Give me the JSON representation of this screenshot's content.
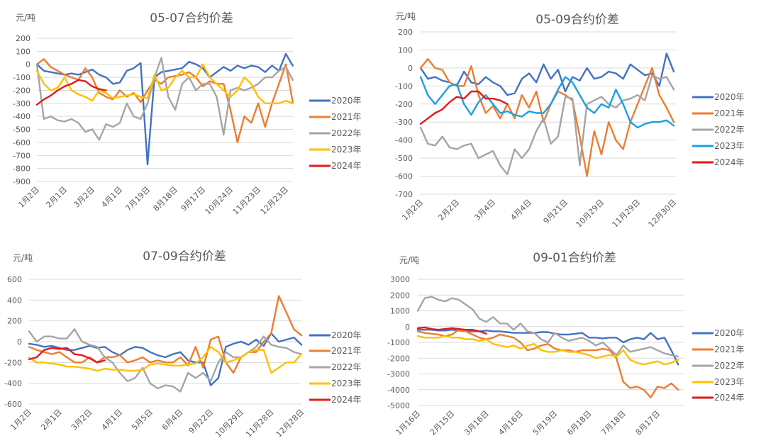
{
  "colors": {
    "2020年": "#4472C4",
    "2021年": "#ED7D31",
    "2022年": "#A5A5A5",
    "2023年": "#FFC000",
    "2024年": "#E31A1C",
    "2023年_alt": "#1AA0E6"
  },
  "chart_data": [
    {
      "type": "line",
      "title": "05-07合约价差",
      "ylabel": "元/吨",
      "xlabel": "",
      "ylim": [
        -900,
        200
      ],
      "ystep": 100,
      "grid": true,
      "legend": "right",
      "tick_labels": [
        "1月2日",
        "2月1日",
        "3月2日",
        "4月1日",
        "7月19日",
        "8月18日",
        "9月17日",
        "10月24日",
        "11月23日",
        "12月23日"
      ],
      "tick_every": 4,
      "series": [
        {
          "name": "2020年",
          "color": "#4472C4",
          "values": [
            0,
            -50,
            -60,
            -70,
            -80,
            -70,
            -80,
            -60,
            -40,
            -80,
            -100,
            -150,
            -140,
            -50,
            -30,
            10,
            -770,
            -100,
            -60,
            -50,
            -40,
            -30,
            20,
            0,
            -30,
            -100,
            -60,
            -20,
            -50,
            -10,
            -30,
            -10,
            -20,
            -60,
            -10,
            -50,
            80,
            -10
          ]
        },
        {
          "name": "2021年",
          "color": "#ED7D31",
          "values": [
            0,
            40,
            -20,
            -50,
            -80,
            -100,
            -120,
            -30,
            -100,
            -220,
            -250,
            -270,
            -200,
            -250,
            -220,
            -290,
            -200,
            -120,
            -150,
            -100,
            -90,
            -80,
            -60,
            -100,
            -170,
            -130,
            -150,
            -150,
            -350,
            -600,
            -400,
            -450,
            -300,
            -480,
            -300,
            -150,
            0,
            -290
          ]
        },
        {
          "name": "2022年",
          "color": "#A5A5A5",
          "values": [
            0,
            -420,
            -400,
            -430,
            -440,
            -420,
            -450,
            -520,
            -500,
            -580,
            -460,
            -480,
            -450,
            -300,
            -400,
            -420,
            -300,
            -100,
            50,
            -250,
            -350,
            -150,
            -100,
            -200,
            -150,
            -150,
            -250,
            -540,
            -200,
            -180,
            -200,
            -180,
            -150,
            -100,
            -100,
            -50,
            -20,
            -120
          ]
        },
        {
          "name": "2023年",
          "color": "#FFC000",
          "values": [
            -50,
            -150,
            -200,
            -180,
            -100,
            -200,
            -230,
            -250,
            -280,
            -200,
            -220,
            -260,
            -250,
            -240,
            -230,
            -250,
            -260,
            -80,
            -200,
            -180,
            -100,
            -50,
            -100,
            -100,
            0,
            -100,
            -150,
            -200,
            -250,
            -200,
            -100,
            -150,
            -250,
            -300,
            -300,
            -300,
            -280,
            -300
          ]
        },
        {
          "name": "2024年",
          "color": "#E31A1C",
          "values": [
            -310,
            -270,
            -240,
            -200,
            -170,
            -150,
            -120,
            -130,
            -170,
            -190,
            -200
          ]
        }
      ]
    },
    {
      "type": "line",
      "title": "05-09合约价差",
      "ylabel": "元/吨",
      "xlabel": "",
      "ylim": [
        -700,
        200
      ],
      "ystep": 100,
      "grid": true,
      "legend": "right",
      "tick_labels": [
        "1月2日",
        "2月2日",
        "3月4日",
        "4月4日",
        "9月21日",
        "10月29日",
        "11月29日",
        "12月30日"
      ],
      "tick_every": 5,
      "series": [
        {
          "name": "2020年",
          "color": "#4472C4",
          "values": [
            0,
            -60,
            -50,
            -70,
            -80,
            -100,
            -20,
            -80,
            -90,
            -50,
            -80,
            -100,
            -150,
            -140,
            -60,
            -30,
            -80,
            20,
            -60,
            -10,
            -130,
            -50,
            -70,
            0,
            -60,
            -50,
            -20,
            -30,
            -60,
            20,
            -10,
            -40,
            -30,
            -100,
            80,
            -20
          ]
        },
        {
          "name": "2021年",
          "color": "#ED7D31",
          "values": [
            0,
            50,
            0,
            -10,
            -80,
            -100,
            -100,
            10,
            -150,
            -250,
            -210,
            -280,
            -200,
            -280,
            -150,
            -220,
            -130,
            -300,
            -200,
            -130,
            -150,
            -180,
            -380,
            -600,
            -350,
            -480,
            -300,
            -400,
            -450,
            -300,
            -200,
            -100,
            0,
            -150,
            -220,
            -300
          ]
        },
        {
          "name": "2022年",
          "color": "#A5A5A5",
          "values": [
            -330,
            -420,
            -430,
            -380,
            -440,
            -450,
            -430,
            -420,
            -500,
            -480,
            -460,
            -540,
            -590,
            -450,
            -500,
            -450,
            -350,
            -280,
            -420,
            -380,
            -160,
            -170,
            -540,
            -200,
            -180,
            -160,
            -200,
            -220,
            -180,
            -170,
            -150,
            -180,
            -40,
            -60,
            -50,
            -120
          ]
        },
        {
          "name": "2023年",
          "color": "#1AA0E6",
          "values": [
            -50,
            -150,
            -200,
            -150,
            -100,
            -90,
            -200,
            -260,
            -190,
            -150,
            -200,
            -250,
            -240,
            -260,
            -270,
            -240,
            -250,
            -250,
            -200,
            -120,
            -50,
            -80,
            -150,
            -220,
            -250,
            -200,
            -220,
            -120,
            -200,
            -300,
            -330,
            -310,
            -300,
            -300,
            -290,
            -320
          ]
        },
        {
          "name": "2024年",
          "color": "#E31A1C",
          "values": [
            -310,
            -280,
            -250,
            -230,
            -190,
            -160,
            -170,
            -130,
            -130,
            -170,
            -170,
            -180,
            -200
          ]
        }
      ]
    },
    {
      "type": "line",
      "title": "07-09合约价差",
      "ylabel": "元/吨",
      "xlabel": "",
      "ylim": [
        -600,
        600
      ],
      "ystep": 200,
      "grid": true,
      "legend": "right",
      "tick_labels": [
        "1月2日",
        "2月1日",
        "3月2日",
        "4月1日",
        "5月5日",
        "6月4日",
        "9月22日",
        "10月29日",
        "11月28日",
        "12月28日"
      ],
      "tick_every": 4,
      "series": [
        {
          "name": "2020年",
          "color": "#4472C4",
          "values": [
            -20,
            -30,
            -50,
            -40,
            -60,
            -80,
            -80,
            -60,
            -40,
            -60,
            -50,
            -100,
            -130,
            -80,
            -50,
            -60,
            -100,
            -130,
            -150,
            -120,
            -100,
            -180,
            -200,
            -200,
            -420,
            -350,
            -50,
            -20,
            0,
            -30,
            20,
            -40,
            80,
            0,
            20,
            40,
            -30
          ]
        },
        {
          "name": "2021年",
          "color": "#ED7D31",
          "values": [
            -50,
            -80,
            -100,
            -120,
            -100,
            -150,
            -200,
            -200,
            -150,
            -200,
            -150,
            -150,
            -130,
            -200,
            -180,
            -150,
            -200,
            -180,
            -200,
            -200,
            -150,
            -230,
            -50,
            -250,
            20,
            50,
            -200,
            -300,
            -150,
            -100,
            -100,
            0,
            80,
            440,
            280,
            120,
            60
          ]
        },
        {
          "name": "2022年",
          "color": "#A5A5A5",
          "values": [
            100,
            0,
            50,
            50,
            30,
            30,
            120,
            0,
            -30,
            -50,
            -150,
            -200,
            -300,
            -380,
            -350,
            -250,
            -400,
            -450,
            -420,
            -430,
            -480,
            -300,
            -350,
            -300,
            -380,
            -200,
            -100,
            -150,
            -150,
            -100,
            -50,
            50,
            -30,
            -50,
            -60,
            -100,
            -120
          ]
        },
        {
          "name": "2023年",
          "color": "#FFC000",
          "values": [
            -150,
            -200,
            -200,
            -210,
            -220,
            -240,
            -240,
            -250,
            -260,
            -280,
            -260,
            -270,
            -270,
            -280,
            -280,
            -270,
            -220,
            -210,
            -220,
            -230,
            -230,
            -220,
            -210,
            -150,
            -50,
            -100,
            -200,
            -180,
            -150,
            -100,
            -80,
            -80,
            -300,
            -250,
            -200,
            -200,
            -120
          ]
        },
        {
          "name": "2024年",
          "color": "#E31A1C",
          "values": [
            -170,
            -150,
            -80,
            -60,
            -70,
            -60,
            -120,
            -130,
            -160,
            -200,
            -180
          ]
        }
      ]
    },
    {
      "type": "line",
      "title": "09-01合约价差",
      "ylabel": "元/吨",
      "xlabel": "",
      "ylim": [
        -5000,
        3000
      ],
      "ystep": 1000,
      "grid": true,
      "legend": "right",
      "tick_labels": [
        "1月16日",
        "2月15日",
        "3月16日",
        "4月16日",
        "5月19日",
        "6月18日",
        "7月18日",
        "8月17日"
      ],
      "tick_every": 5,
      "series": [
        {
          "name": "2020年",
          "color": "#4472C4",
          "values": [
            -200,
            -200,
            -200,
            -250,
            -250,
            -200,
            -250,
            -300,
            -300,
            -300,
            -250,
            -300,
            -300,
            -350,
            -400,
            -400,
            -400,
            -400,
            -350,
            -350,
            -450,
            -500,
            -500,
            -450,
            -400,
            -700,
            -700,
            -750,
            -700,
            -700,
            -1000,
            -800,
            -700,
            -800,
            -400,
            -800,
            -700,
            -1500,
            -2400
          ]
        },
        {
          "name": "2021年",
          "color": "#ED7D31",
          "values": [
            -300,
            -400,
            -450,
            -500,
            -600,
            -500,
            -200,
            -300,
            -500,
            -700,
            -800,
            -700,
            -500,
            -600,
            -700,
            -1000,
            -1500,
            -1400,
            -1200,
            -1100,
            -1400,
            -1500,
            -1500,
            -1600,
            -1500,
            -1500,
            -1500,
            -1400,
            -1500,
            -2000,
            -3500,
            -3900,
            -3800,
            -4000,
            -4500,
            -3800,
            -3900,
            -3600,
            -4000
          ]
        },
        {
          "name": "2022年",
          "color": "#A5A5A5",
          "values": [
            1000,
            1800,
            1900,
            1700,
            1600,
            1800,
            1700,
            1400,
            1100,
            500,
            300,
            600,
            200,
            200,
            -200,
            200,
            -300,
            -400,
            -800,
            -1000,
            -400,
            -700,
            -900,
            -800,
            -700,
            -900,
            -1200,
            -1000,
            -1400,
            -1800,
            -1200,
            -1600,
            -1500,
            -1400,
            -1300,
            -1500,
            -1700,
            -1800,
            -1900
          ]
        },
        {
          "name": "2023年",
          "color": "#FFC000",
          "values": [
            -600,
            -700,
            -700,
            -700,
            -600,
            -700,
            -700,
            -800,
            -800,
            -900,
            -800,
            -1100,
            -1200,
            -1300,
            -1200,
            -1400,
            -1200,
            -1100,
            -1500,
            -1600,
            -1600,
            -1500,
            -1600,
            -1600,
            -1700,
            -1800,
            -2000,
            -1900,
            -1800,
            -1900,
            -1500,
            -2100,
            -2300,
            -2400,
            -2300,
            -2200,
            -2400,
            -2300,
            -2100
          ]
        },
        {
          "name": "2024年",
          "color": "#E31A1C",
          "values": [
            -100,
            -50,
            -150,
            -200,
            -150,
            -100,
            -150,
            -200,
            -200,
            -300,
            -450
          ]
        }
      ]
    }
  ]
}
